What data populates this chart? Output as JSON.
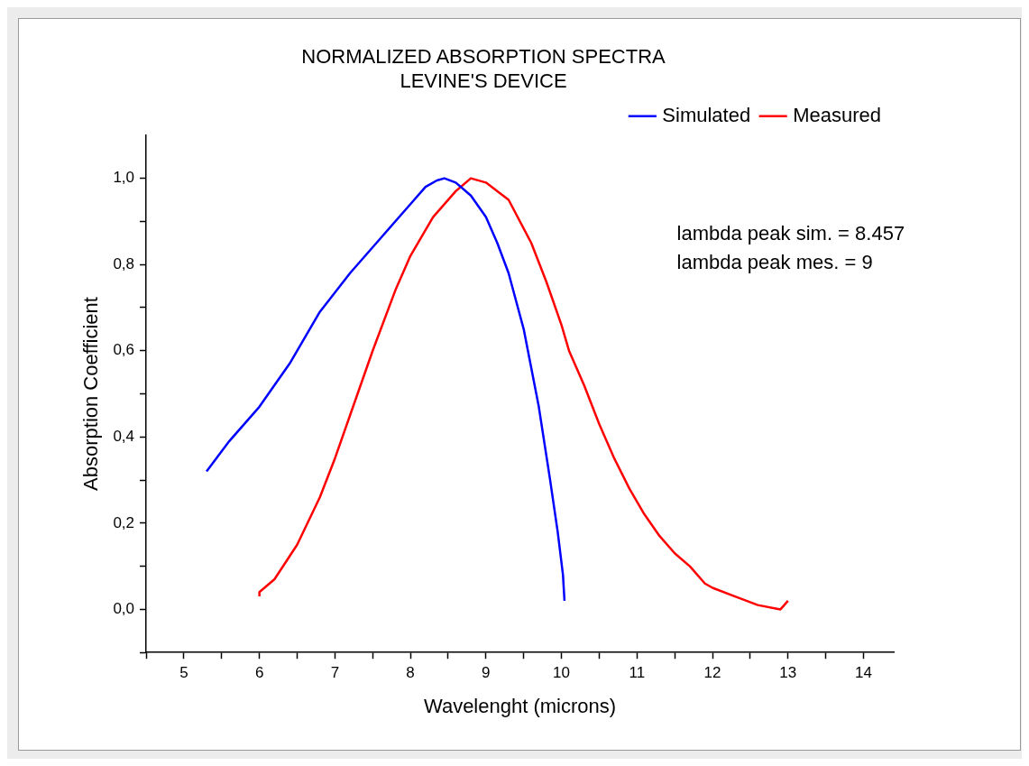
{
  "chart_data": {
    "type": "line",
    "title": "NORMALIZED ABSORPTION SPECTRA\nLEVINE'S DEVICE",
    "xlabel": "Wavelenght (microns)",
    "ylabel": "Absorption Coefficient",
    "legend": "top right",
    "grid": false,
    "marker": "none",
    "line_style": "solid",
    "xlim": [
      4.5,
      14.4
    ],
    "ylim": [
      -0.1,
      1.1
    ],
    "xticks": [
      {
        "value": 4.5,
        "label": null
      },
      5,
      {
        "value": 5.5,
        "label": null
      },
      6,
      {
        "value": 6.5,
        "label": null
      },
      7,
      {
        "value": 7.5,
        "label": null
      },
      8,
      {
        "value": 8.5,
        "label": null
      },
      9,
      {
        "value": 9.5,
        "label": null
      },
      10,
      {
        "value": 10.5,
        "label": null
      },
      11,
      {
        "value": 11.5,
        "label": null
      },
      12,
      {
        "value": 12.5,
        "label": null
      },
      13,
      {
        "value": 13.5,
        "label": null
      },
      14
    ],
    "yticks": [
      {
        "value": -0.1,
        "label": null
      },
      {
        "value": 0,
        "label": "0,0"
      },
      {
        "value": 0.1,
        "label": null
      },
      {
        "value": 0.2,
        "label": "0,2"
      },
      {
        "value": 0.3,
        "label": null
      },
      {
        "value": 0.4,
        "label": "0,4"
      },
      {
        "value": 0.5,
        "label": null
      },
      {
        "value": 0.6,
        "label": "0,6"
      },
      {
        "value": 0.7,
        "label": null
      },
      {
        "value": 0.8,
        "label": "0,8"
      },
      {
        "value": 0.9,
        "label": null
      },
      {
        "value": 1,
        "label": "1,0"
      }
    ],
    "annotations": [
      "lambda peak sim. = 8.457",
      "lambda peak mes. = 9"
    ],
    "series": [
      {
        "name": "Simulated",
        "color": "#0000ff",
        "x": [
          5.3,
          5.6,
          6.0,
          6.4,
          6.8,
          7.2,
          7.6,
          8.0,
          8.2,
          8.35,
          8.45,
          8.6,
          8.8,
          9.0,
          9.15,
          9.3,
          9.5,
          9.7,
          9.85,
          9.95,
          10.02,
          10.04
        ],
        "values": [
          0.32,
          0.39,
          0.47,
          0.57,
          0.69,
          0.78,
          0.86,
          0.94,
          0.98,
          0.995,
          1.0,
          0.99,
          0.96,
          0.91,
          0.85,
          0.78,
          0.65,
          0.47,
          0.3,
          0.18,
          0.08,
          0.02
        ]
      },
      {
        "name": "Measured",
        "color": "#ff0000",
        "x": [
          6.0,
          6.0,
          6.2,
          6.5,
          6.8,
          7.0,
          7.3,
          7.5,
          7.8,
          8.0,
          8.3,
          8.6,
          8.8,
          9.0,
          9.3,
          9.6,
          9.8,
          10.0,
          10.1,
          10.3,
          10.5,
          10.7,
          10.9,
          11.1,
          11.3,
          11.5,
          11.7,
          11.9,
          12.0,
          12.3,
          12.6,
          12.9,
          13.0
        ],
        "values": [
          0.03,
          0.04,
          0.07,
          0.15,
          0.26,
          0.35,
          0.5,
          0.6,
          0.74,
          0.82,
          0.91,
          0.97,
          1.0,
          0.99,
          0.95,
          0.85,
          0.76,
          0.66,
          0.6,
          0.52,
          0.43,
          0.35,
          0.28,
          0.22,
          0.17,
          0.13,
          0.1,
          0.06,
          0.05,
          0.03,
          0.01,
          0.0,
          0.02
        ]
      }
    ]
  }
}
